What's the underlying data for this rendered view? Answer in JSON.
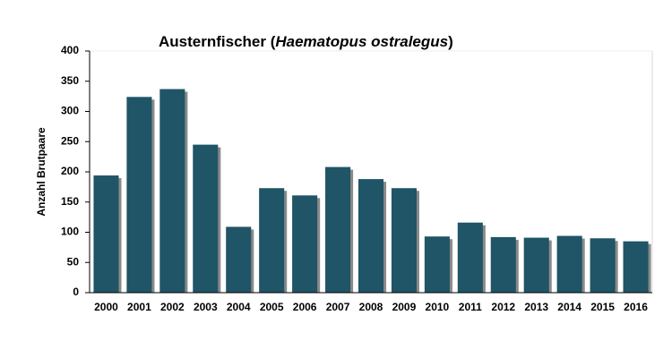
{
  "chart_data": {
    "type": "bar",
    "title_parts": [
      "Austernfischer (",
      "Haematopus ostralegus",
      ")"
    ],
    "y_label": "Anzahl Brutpaare",
    "categories": [
      "2000",
      "2001",
      "2002",
      "2003",
      "2004",
      "2005",
      "2006",
      "2007",
      "2008",
      "2009",
      "2010",
      "2011",
      "2012",
      "2013",
      "2014",
      "2015",
      "2016"
    ],
    "values": [
      194,
      324,
      337,
      245,
      109,
      173,
      161,
      208,
      188,
      173,
      93,
      116,
      92,
      91,
      94,
      90,
      85
    ],
    "color": "#1f5566",
    "ylim": [
      0,
      400
    ],
    "yticks": [
      0,
      50,
      100,
      150,
      200,
      250,
      300,
      350,
      400
    ],
    "grid": false
  }
}
